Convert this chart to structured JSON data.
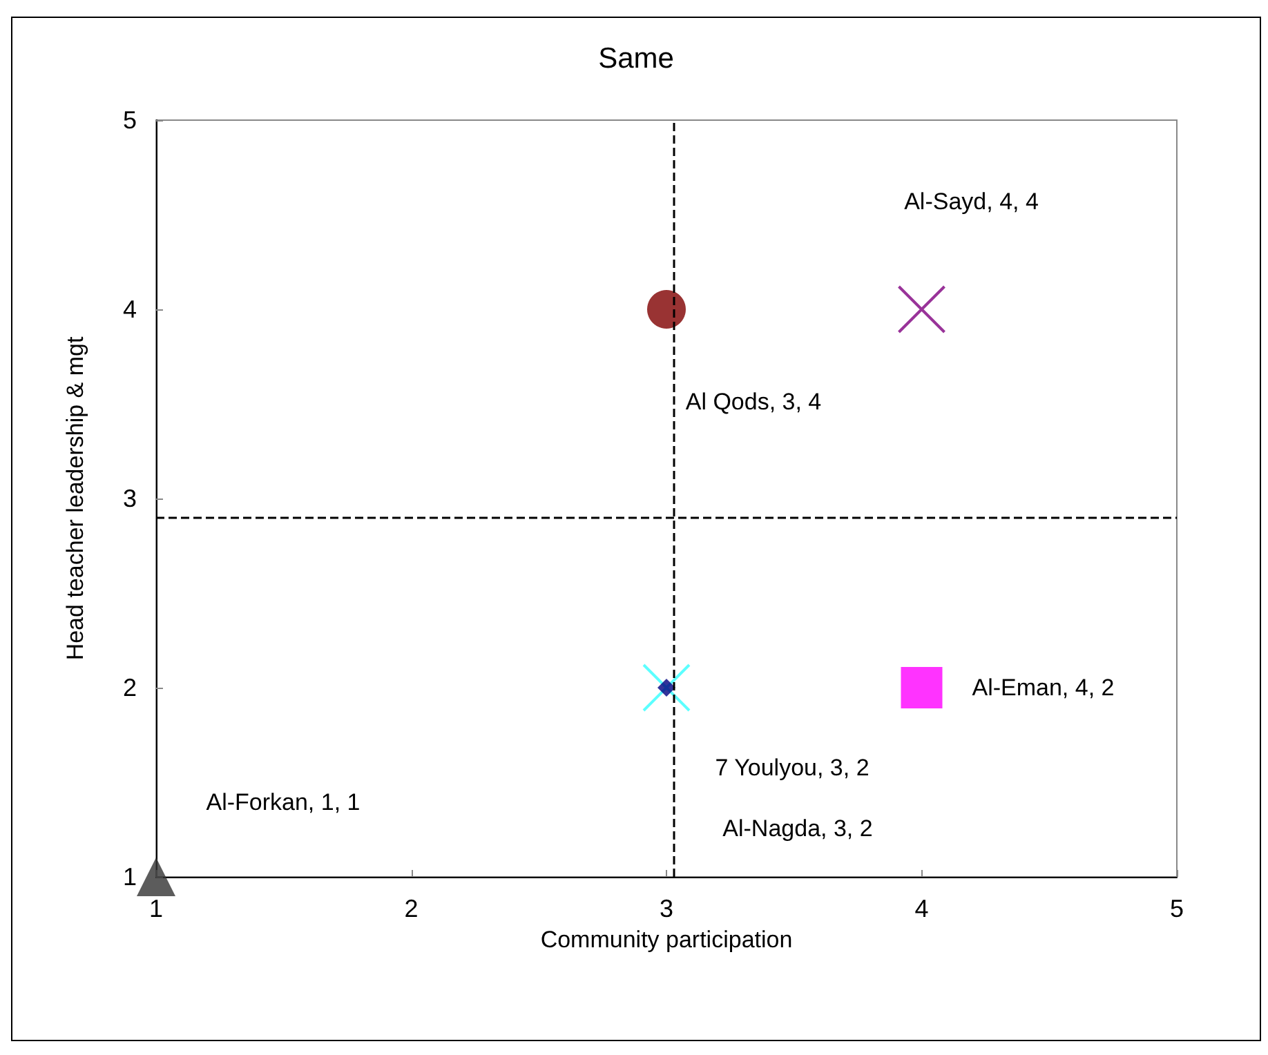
{
  "chart_data": {
    "type": "scatter",
    "title": "Same",
    "xlabel": "Community participation",
    "ylabel": "Head teacher leadership & mgt",
    "xlim": [
      1,
      5
    ],
    "ylim": [
      1,
      5
    ],
    "xticks": [
      1,
      2,
      3,
      4,
      5
    ],
    "yticks": [
      1,
      2,
      3,
      4,
      5
    ],
    "grid": false,
    "series": [
      {
        "color": "#333333",
        "marker": "triangle",
        "x": [
          1
        ],
        "values": [
          1
        ]
      },
      {
        "color": "#800000",
        "marker": "circle",
        "x": [
          3
        ],
        "values": [
          4
        ]
      },
      {
        "color": "#800080",
        "marker": "cross",
        "x": [
          4
        ],
        "values": [
          4
        ]
      },
      {
        "color": "#33ffff",
        "marker": "cross",
        "x": [
          3
        ],
        "values": [
          2
        ]
      },
      {
        "color": "#000080",
        "marker": "diamond",
        "x": [
          3
        ],
        "values": [
          2
        ]
      },
      {
        "color": "#ff00ff",
        "marker": "square",
        "x": [
          4
        ],
        "values": [
          2
        ]
      }
    ],
    "annotations": [
      "Al-Forkan, 1, 1",
      "Al Qods, 3, 4",
      "Al-Sayd, 4, 4",
      "7 Youlyou, 3, 2",
      "Al-Nagda, 3, 2",
      "Al-Eman, 4, 2"
    ],
    "ref_lines": [
      {
        "axis": "x",
        "value": 3.03,
        "label": null,
        "color": "#000000",
        "line_style": "dashed"
      },
      {
        "axis": "y",
        "value": 2.9,
        "label": null,
        "color": "#000000",
        "line_style": "dashed"
      }
    ]
  }
}
